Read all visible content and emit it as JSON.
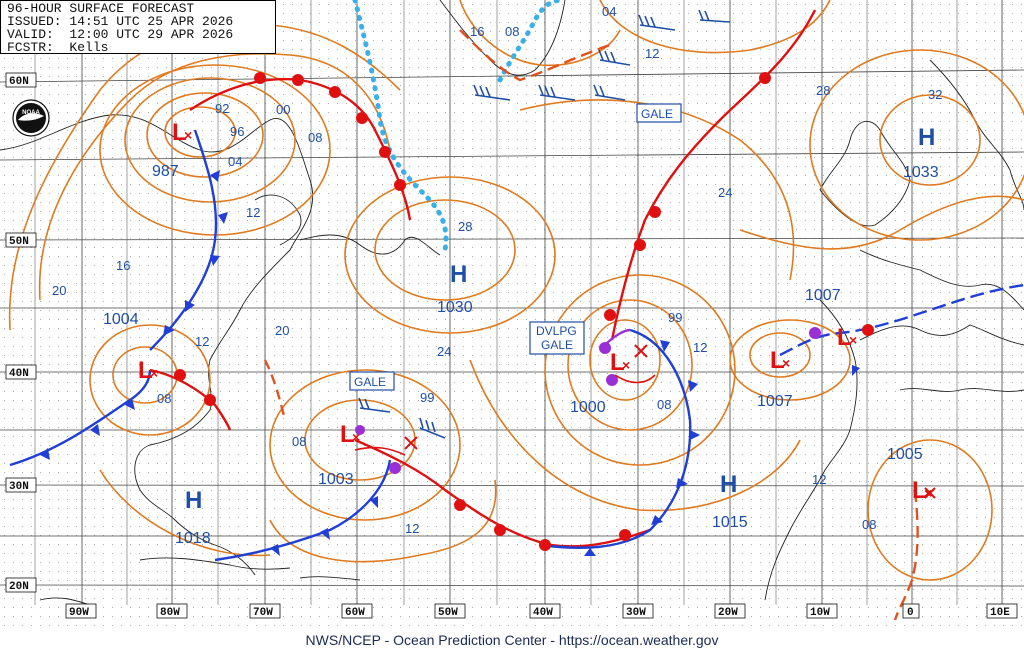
{
  "header": {
    "line1": "96-HOUR SURFACE FORECAST",
    "line2": "ISSUED: 14:51 UTC 25 APR 2026",
    "line3": "VALID:  12:00 UTC 29 APR 2026",
    "line4": "FCSTR:  Kells"
  },
  "footer": "NWS/NCEP - Ocean Prediction Center - https://ocean.weather.gov",
  "logo_text": "NOAA",
  "lat_labels": [
    "60N",
    "50N",
    "40N",
    "30N",
    "20N"
  ],
  "lon_labels": [
    "90W",
    "80W",
    "70W",
    "60W",
    "50W",
    "40W",
    "30W",
    "20W",
    "10W",
    "0",
    "10E"
  ],
  "pressure_centers": [
    {
      "type": "L",
      "label": "987"
    },
    {
      "type": "H",
      "label": "1030"
    },
    {
      "type": "L",
      "label": "1004"
    },
    {
      "type": "L",
      "label": "1003"
    },
    {
      "type": "H",
      "label": "1018"
    },
    {
      "type": "L",
      "label": "1000"
    },
    {
      "type": "H",
      "label": "1015"
    },
    {
      "type": "L",
      "label": "1007"
    },
    {
      "type": "L",
      "label": "1007"
    },
    {
      "type": "H",
      "label": "1033"
    },
    {
      "type": "L",
      "label": "1005"
    }
  ],
  "warnings": [
    "GALE",
    "GALE",
    "DVLPG GALE"
  ],
  "isobar_labels": [
    "16",
    "08",
    "04",
    "12",
    "92",
    "96",
    "00",
    "08",
    "04",
    "12",
    "16",
    "20",
    "28",
    "24",
    "20",
    "12",
    "08",
    "08",
    "99",
    "12",
    "24",
    "28",
    "32",
    "99",
    "12",
    "08",
    "12",
    "08"
  ],
  "colors": {
    "isobar": "#e07a1f",
    "cold_front": "#1f3fd6",
    "warm_front": "#e01010",
    "occluded": "#9b2fd6",
    "ice_edge": "#3ab0e8",
    "label_blue": "#1f4ea8",
    "grid": "#555555"
  }
}
